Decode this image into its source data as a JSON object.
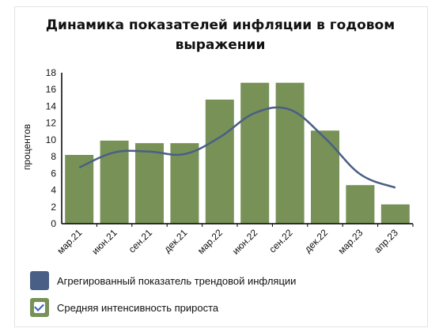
{
  "chart_data": {
    "type": "bar",
    "title": "Динамика показателей инфляции в годовом выражении",
    "ylabel": "процентов",
    "xlabel": "",
    "ylim": [
      0,
      18
    ],
    "yticks": [
      "0",
      "2",
      "4",
      "6",
      "8",
      "10",
      "12",
      "14",
      "16",
      "18"
    ],
    "categories": [
      "мар.21",
      "июн.21",
      "сен.21",
      "дек.21",
      "мар.22",
      "июн.22",
      "сен.22",
      "дек.22",
      "мар.23",
      "апр.23"
    ],
    "series": [
      {
        "name": "Средняя интенсивность прироста",
        "type": "bar",
        "color": "#779157",
        "values": [
          8.2,
          9.9,
          9.6,
          9.6,
          14.8,
          16.8,
          16.8,
          11.1,
          4.6,
          2.3
        ]
      },
      {
        "name": "Агрегированный показатель трендовой инфляции",
        "type": "line",
        "color": "#4a5f85",
        "values": [
          6.7,
          8.5,
          8.6,
          8.3,
          10.3,
          13.2,
          13.6,
          10.2,
          5.9,
          4.3
        ]
      }
    ],
    "grid": false,
    "legend_position": "bottom-left"
  },
  "legend": {
    "checkbox_checked": true,
    "check_color": "#2f5ec4"
  }
}
